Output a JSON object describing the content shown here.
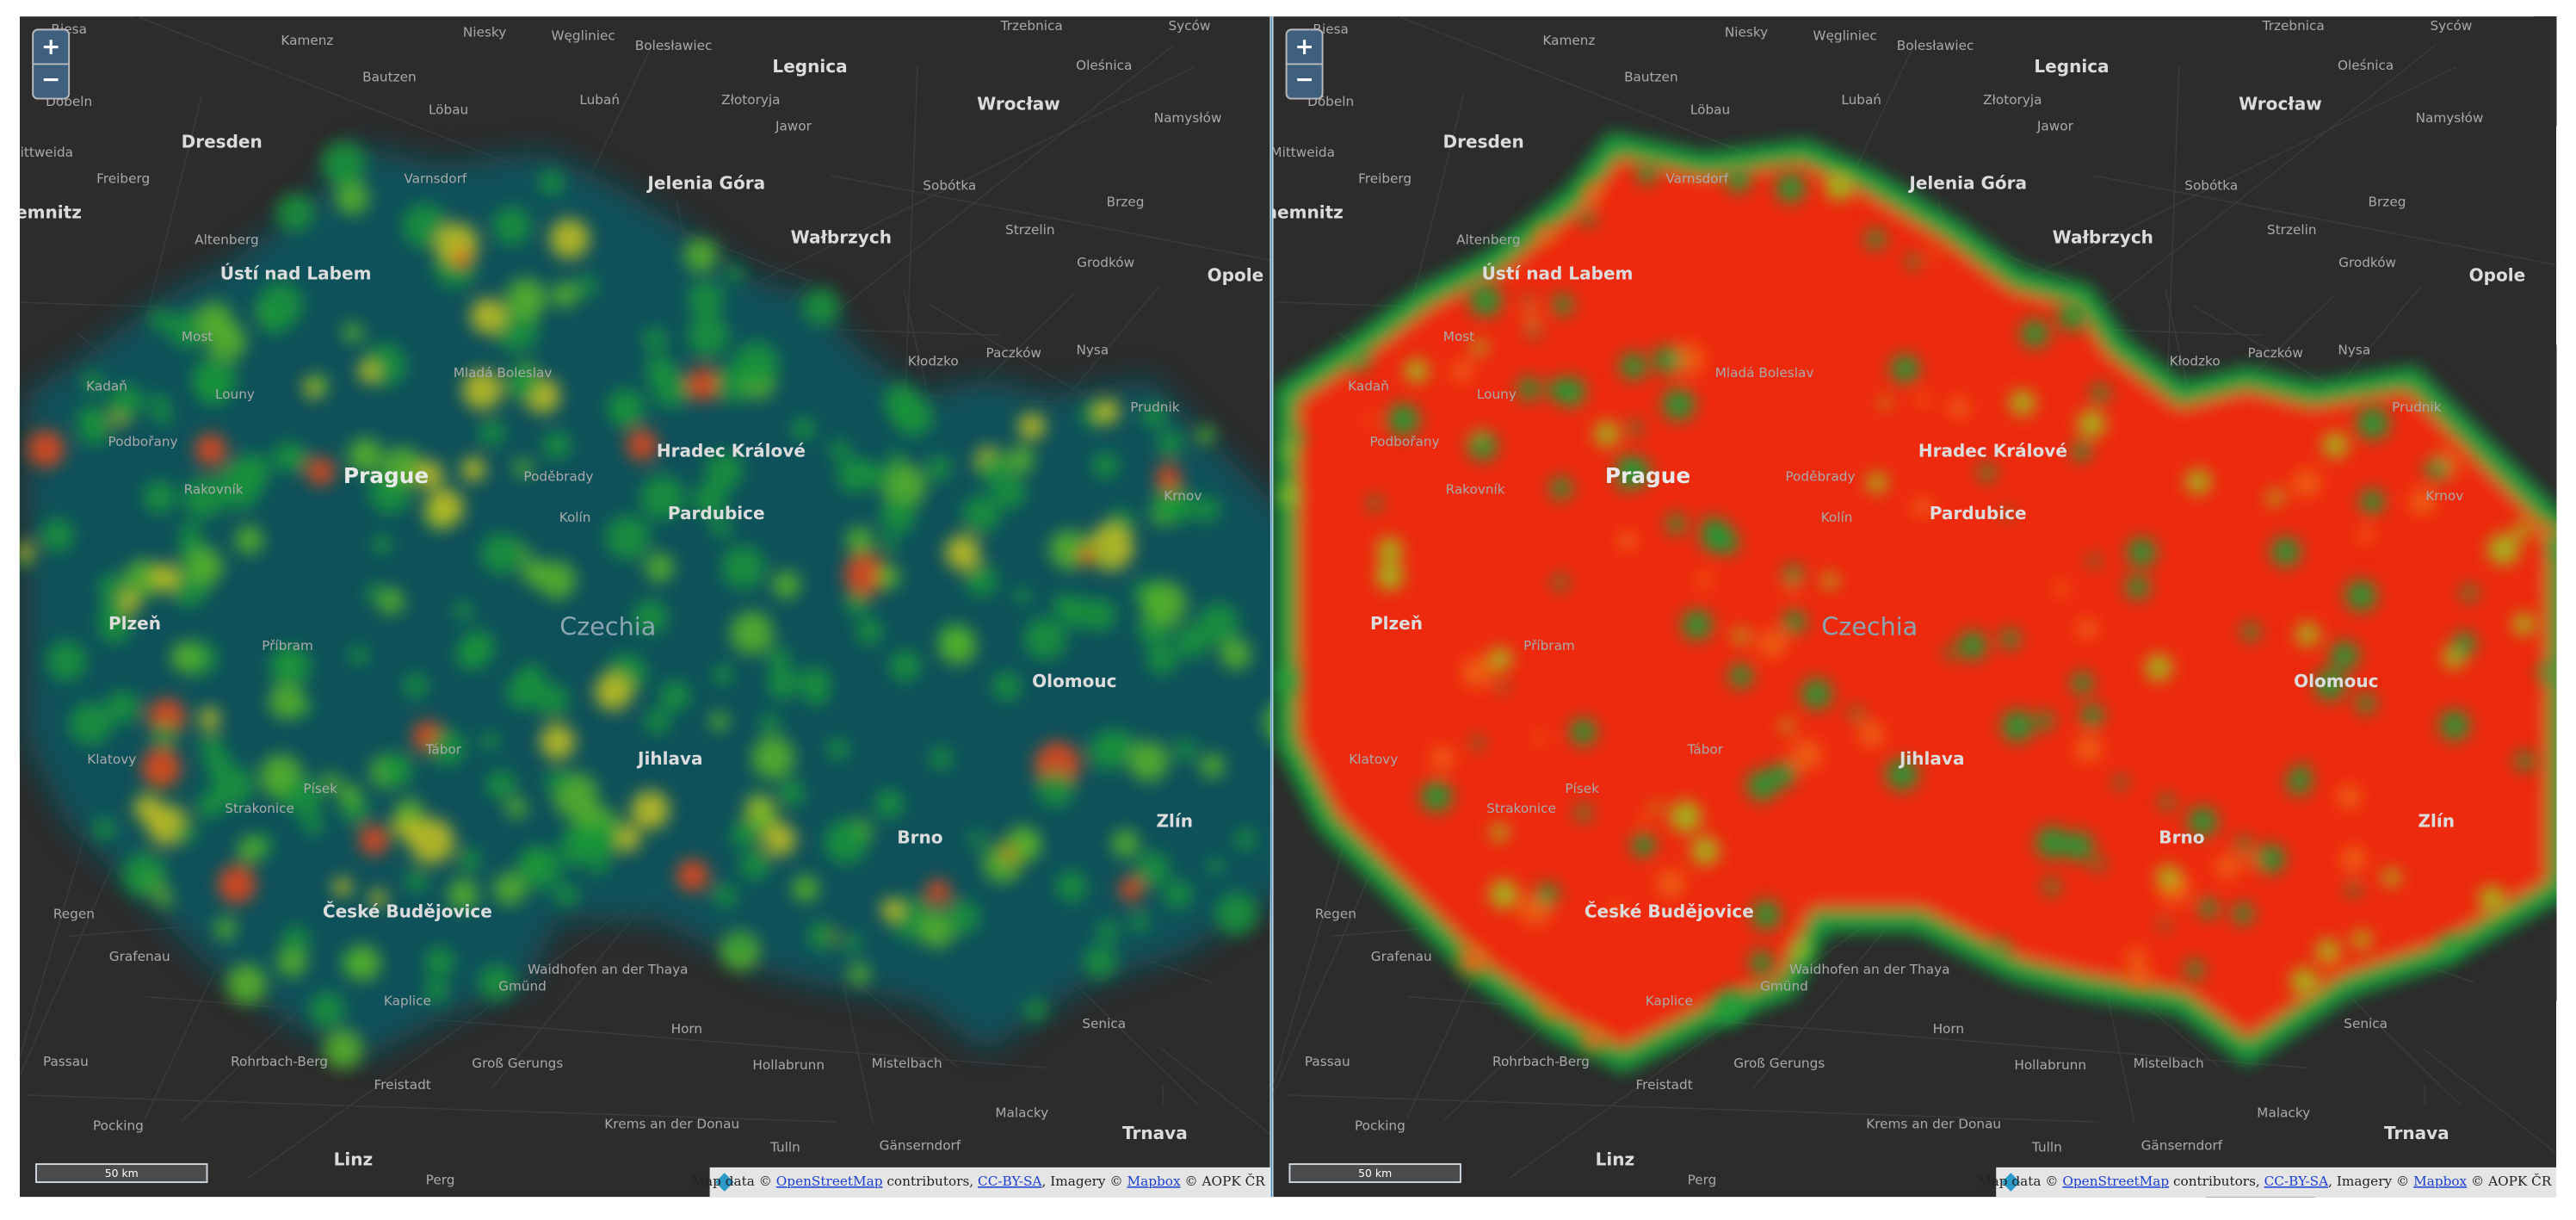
{
  "controls": {
    "zoom_in": "+",
    "zoom_out": "−"
  },
  "scale": "50 km",
  "attribution": [
    "Map data © ",
    "OpenStreetMap",
    " contributors, ",
    "CC-BY-SA",
    ", Imagery © ",
    "Mapbox",
    " © AOPK ČR"
  ],
  "places": [
    "Riesa",
    "Kamenz",
    "Niesky",
    "Węgliniec",
    "Bolesławiec",
    "Trzebnica",
    "Syców",
    "Bautzen",
    "Legnica",
    "Oleśnica",
    "Döbeln",
    "Löbau",
    "Lubań",
    "Złotoryja",
    "Jawor",
    "Wrocław",
    "Namysłów",
    "Mittweida",
    "Dresden",
    "Varnsdorf",
    "Jelenia Góra",
    "Sobótka",
    "Brzeg",
    "Freiberg",
    "Chemnitz",
    "Altenberg",
    "Wałbrzych",
    "Strzelin",
    "Grodków",
    "Opole",
    "Ústí nad Labem",
    "Most",
    "Mladá Boleslav",
    "Kłodzko",
    "Paczków",
    "Nysa",
    "Kadaň",
    "Louny",
    "Prudnik",
    "Podbořany",
    "Hradec Králové",
    "Poděbrady",
    "Prague",
    "Rakovník",
    "Kolín",
    "Pardubice",
    "Krnov",
    "Plzeň",
    "Czechia",
    "Příbram",
    "Olomouc",
    "Jihlava",
    "Klatovy",
    "Tábor",
    "Písek",
    "Strakonice",
    "Zlín",
    "Brno",
    "České Budějovice",
    "Regen",
    "Grafenau",
    "Waidhofen an der Thaya",
    "Kaplice",
    "Gmünd",
    "Senica",
    "Horn",
    "Hollabrunn",
    "Mistelbach",
    "Passau",
    "Rohrbach-Berg",
    "Groß Gerungs",
    "Freistadt",
    "Malacky",
    "Pocking",
    "Krems an der Donau",
    "Trnava",
    "Tulln",
    "Gänserndorf",
    "Linz",
    "Perg"
  ]
}
